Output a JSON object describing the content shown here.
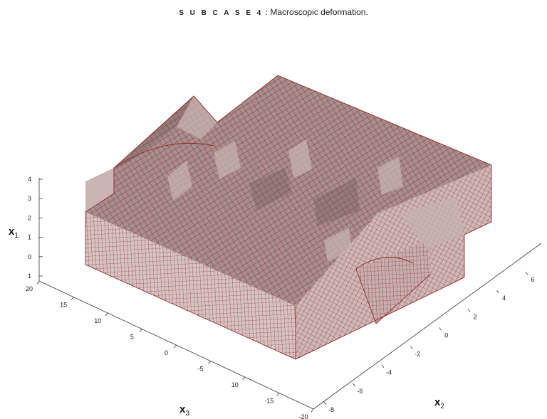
{
  "title": {
    "lead": "S U B C A S E 4",
    "rest": " : Macroscopic deformation."
  },
  "axes": {
    "x1": {
      "label": "x",
      "sub": "1",
      "ticks": [
        "4",
        "3",
        "2",
        "1",
        "0",
        "1"
      ]
    },
    "x3": {
      "label": "x",
      "sub": "3",
      "ticks": [
        "20",
        "15",
        "10",
        "5",
        "0",
        "-5",
        "10",
        "-15",
        "-20"
      ]
    },
    "x2": {
      "label": "x",
      "sub": "2",
      "ticks": [
        "-8",
        "-6",
        "-4",
        "-2",
        "0",
        "2",
        "4",
        "6"
      ]
    }
  },
  "colors": {
    "mesh_line": "#8b1a1a",
    "face_top": "#a68f8f",
    "face_left": "#c9b3b3",
    "face_front": "#d6c4c4",
    "face_shadow": "#8f7878",
    "axis": "#333333"
  }
}
